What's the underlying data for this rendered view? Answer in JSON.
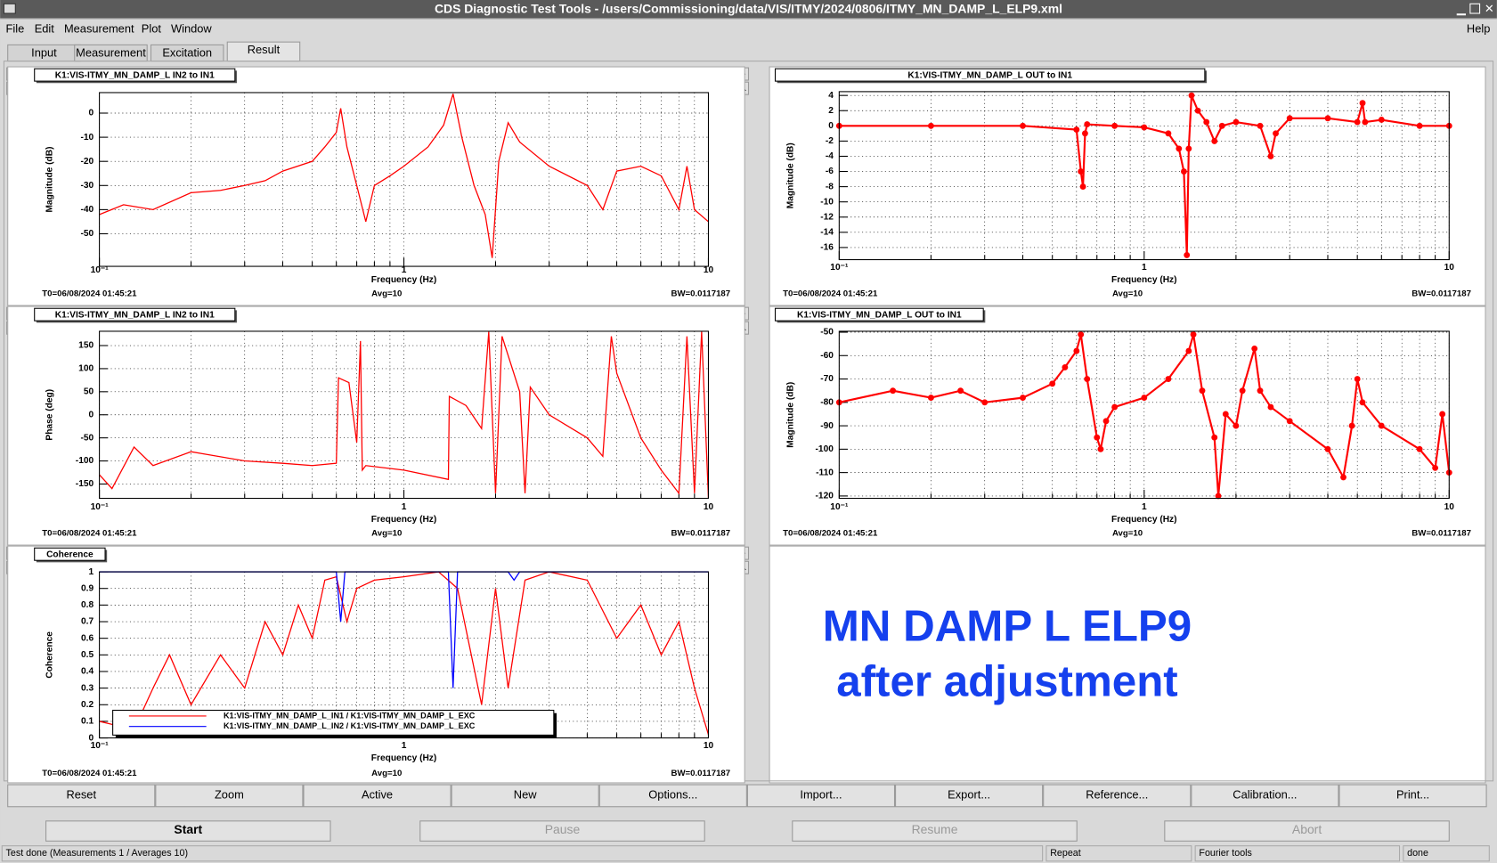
{
  "window": {
    "title": "CDS Diagnostic Test Tools - /users/Commissioning/data/VIS/ITMY/2024/0806/ITMY_MN_DAMP_L_ELP9.xml"
  },
  "menu": [
    "File",
    "Edit",
    "Measurement",
    "Plot",
    "Window"
  ],
  "help": "Help",
  "tabs": [
    "Input",
    "Measurement",
    "Excitation",
    "Result"
  ],
  "selected_tab": 3,
  "chart_data": [
    {
      "type": "line",
      "title": "K1:VIS-ITMY_MN_DAMP_L IN2 to IN1",
      "x_label": "Frequency (Hz)",
      "y_label": "Magnitude (dB)",
      "log_x": true,
      "grid": true,
      "xlim": [
        0.1,
        10
      ],
      "xticks": [
        {
          "value": 0.1,
          "label": "10⁻¹"
        },
        1,
        10
      ],
      "x_minor_ticks": [
        0.2,
        0.3,
        0.4,
        0.5,
        0.6,
        0.7,
        0.8,
        0.9,
        2,
        3,
        4,
        5,
        6,
        7,
        8,
        9
      ],
      "ylim": [
        -63.5,
        8.5
      ],
      "yticks": [
        -50,
        -40,
        -30,
        -20,
        -10,
        0
      ],
      "series": [
        {
          "color": "#ff0000",
          "markers": false,
          "x": [
            0.1,
            0.12,
            0.15,
            0.2,
            0.25,
            0.3,
            0.35,
            0.4,
            0.5,
            0.55,
            0.6,
            0.62,
            0.65,
            0.7,
            0.75,
            0.8,
            0.9,
            1,
            1.2,
            1.35,
            1.45,
            1.55,
            1.7,
            1.85,
            1.95,
            2.05,
            2.2,
            2.4,
            3,
            4,
            4.5,
            5,
            6,
            7,
            8,
            8.5,
            9,
            10
          ],
          "values": [
            -42,
            -38,
            -40,
            -33,
            -32,
            -30,
            -28,
            -24,
            -20,
            -14,
            -8,
            2,
            -14,
            -30,
            -45,
            -30,
            -26,
            -22,
            -14,
            -5,
            8,
            -10,
            -30,
            -42,
            -60,
            -20,
            -4,
            -12,
            -22,
            -30,
            -40,
            -24,
            -22,
            -26,
            -40,
            -22,
            -40,
            -45
          ]
        }
      ],
      "footer": [
        "T0=06/08/2024 01:45:21",
        "Avg=10",
        "BW=0.0117187"
      ]
    },
    {
      "type": "line",
      "title": "K1:VIS-ITMY_MN_DAMP_L OUT to IN1",
      "x_label": "Frequency (Hz)",
      "y_label": "Magnitude (dB)",
      "log_x": true,
      "grid": true,
      "xlim": [
        0.1,
        10
      ],
      "xticks": [
        {
          "value": 0.1,
          "label": "10⁻¹"
        },
        1,
        10
      ],
      "x_minor_ticks": [
        0.2,
        0.3,
        0.4,
        0.5,
        0.6,
        0.7,
        0.8,
        0.9,
        2,
        3,
        4,
        5,
        6,
        7,
        8,
        9
      ],
      "ylim": [
        -17.6,
        4.5
      ],
      "yticks": [
        -16,
        -14,
        -12,
        -10,
        -8,
        -6,
        -4,
        -2,
        0,
        2,
        4
      ],
      "series": [
        {
          "color": "#ff0000",
          "markers": true,
          "x": [
            0.1,
            0.2,
            0.4,
            0.6,
            0.62,
            0.63,
            0.64,
            0.65,
            0.8,
            1,
            1.2,
            1.3,
            1.35,
            1.38,
            1.4,
            1.43,
            1.5,
            1.6,
            1.7,
            1.8,
            2,
            2.4,
            2.6,
            2.7,
            3,
            4,
            5,
            5.2,
            5.3,
            6,
            8,
            10
          ],
          "values": [
            0,
            0,
            0,
            -0.5,
            -6,
            -8,
            -1,
            0.2,
            0,
            -0.2,
            -1,
            -3,
            -6,
            -17,
            -3,
            4,
            2,
            0.5,
            -2,
            0,
            0.5,
            0,
            -4,
            -1,
            1,
            1,
            0.5,
            3,
            0.5,
            0.8,
            0,
            0
          ]
        }
      ],
      "footer": [
        "T0=06/08/2024 01:45:21",
        "Avg=10",
        "BW=0.0117187"
      ]
    },
    {
      "type": "line",
      "title": "K1:VIS-ITMY_MN_DAMP_L IN2 to IN1",
      "x_label": "Frequency (Hz)",
      "y_label": "Phase (deg)",
      "log_x": true,
      "grid": true,
      "xlim": [
        0.1,
        10
      ],
      "xticks": [
        {
          "value": 0.1,
          "label": "10⁻¹"
        },
        1,
        10
      ],
      "x_minor_ticks": [
        0.2,
        0.3,
        0.4,
        0.5,
        0.6,
        0.7,
        0.8,
        0.9,
        2,
        3,
        4,
        5,
        6,
        7,
        8,
        9
      ],
      "ylim": [
        -181,
        181
      ],
      "yticks": [
        -150,
        -100,
        -50,
        0,
        50,
        100,
        150
      ],
      "series": [
        {
          "color": "#ff0000",
          "markers": false,
          "x": [
            0.1,
            0.11,
            0.13,
            0.15,
            0.2,
            0.3,
            0.4,
            0.5,
            0.6,
            0.61,
            0.66,
            0.7,
            0.72,
            0.73,
            0.75,
            1,
            1.4,
            1.41,
            1.6,
            1.8,
            1.9,
            2,
            2.1,
            2.4,
            2.5,
            2.6,
            3,
            4,
            4.5,
            4.8,
            5,
            6,
            7,
            8,
            8.5,
            9,
            9.5,
            10
          ],
          "values": [
            -130,
            -160,
            -70,
            -110,
            -80,
            -100,
            -105,
            -110,
            -105,
            80,
            70,
            -60,
            160,
            -120,
            -110,
            -120,
            -140,
            40,
            20,
            -30,
            180,
            -170,
            170,
            50,
            -170,
            60,
            0,
            -50,
            -90,
            170,
            90,
            -50,
            -120,
            -170,
            170,
            -170,
            180,
            -180
          ]
        }
      ],
      "footer": [
        "T0=06/08/2024 01:45:21",
        "Avg=10",
        "BW=0.0117187"
      ]
    },
    {
      "type": "line",
      "title": "K1:VIS-ITMY_MN_DAMP_L OUT to IN1",
      "x_label": "Frequency (Hz)",
      "y_label": "Magnitude (dB)",
      "log_x": true,
      "grid": true,
      "xlim": [
        0.1,
        10
      ],
      "xticks": [
        {
          "value": 0.1,
          "label": "10⁻¹"
        },
        1,
        10
      ],
      "x_minor_ticks": [
        0.2,
        0.3,
        0.4,
        0.5,
        0.6,
        0.7,
        0.8,
        0.9,
        2,
        3,
        4,
        5,
        6,
        7,
        8,
        9
      ],
      "ylim": [
        -121,
        -49.6
      ],
      "yticks": [
        -120,
        -110,
        -100,
        -90,
        -80,
        -70,
        -60,
        -50
      ],
      "series": [
        {
          "color": "#ff0000",
          "markers": true,
          "x": [
            0.1,
            0.15,
            0.2,
            0.25,
            0.3,
            0.4,
            0.5,
            0.55,
            0.6,
            0.62,
            0.65,
            0.7,
            0.72,
            0.75,
            0.8,
            1,
            1.2,
            1.4,
            1.45,
            1.55,
            1.7,
            1.75,
            1.85,
            2,
            2.1,
            2.3,
            2.4,
            2.6,
            3,
            4,
            4.5,
            4.8,
            5,
            5.2,
            6,
            8,
            9,
            9.5,
            10
          ],
          "values": [
            -80,
            -75,
            -78,
            -75,
            -80,
            -78,
            -72,
            -65,
            -58,
            -51,
            -70,
            -95,
            -100,
            -88,
            -82,
            -78,
            -70,
            -58,
            -51,
            -75,
            -95,
            -120,
            -85,
            -90,
            -75,
            -57,
            -75,
            -82,
            -88,
            -100,
            -112,
            -90,
            -70,
            -80,
            -90,
            -100,
            -108,
            -85,
            -110
          ]
        }
      ],
      "footer": [
        "T0=06/08/2024 01:45:21",
        "Avg=10",
        "BW=0.0117187"
      ]
    },
    {
      "type": "line",
      "title": "Coherence",
      "x_label": "Frequency (Hz)",
      "y_label": "Coherence",
      "log_x": true,
      "grid": true,
      "xlim": [
        0.1,
        10
      ],
      "xticks": [
        {
          "value": 0.1,
          "label": "10⁻¹"
        },
        1,
        10
      ],
      "x_minor_ticks": [
        0.2,
        0.3,
        0.4,
        0.5,
        0.6,
        0.7,
        0.8,
        0.9,
        2,
        3,
        4,
        5,
        6,
        7,
        8,
        9
      ],
      "ylim": [
        0,
        1
      ],
      "yticks": [
        0,
        0.1,
        0.2,
        0.3,
        0.4,
        0.5,
        0.6,
        0.7,
        0.8,
        0.9,
        1
      ],
      "series": [
        {
          "name": "K1:VIS-ITMY_MN_DAMP_L_IN1 / K1:VIS-ITMY_MN_DAMP_L_EXC",
          "color": "#ff0000",
          "markers": false,
          "x": [
            0.1,
            0.13,
            0.15,
            0.17,
            0.2,
            0.25,
            0.3,
            0.35,
            0.4,
            0.45,
            0.5,
            0.55,
            0.6,
            0.65,
            0.7,
            0.8,
            1,
            1.3,
            1.5,
            1.8,
            2,
            2.2,
            2.5,
            3,
            4,
            5,
            6,
            7,
            8,
            9,
            10
          ],
          "values": [
            0.1,
            0.05,
            0.3,
            0.5,
            0.2,
            0.5,
            0.3,
            0.7,
            0.5,
            0.8,
            0.6,
            0.95,
            0.97,
            0.7,
            0.9,
            0.95,
            0.97,
            1,
            0.9,
            0.2,
            0.9,
            0.3,
            0.95,
            1,
            0.95,
            0.6,
            0.8,
            0.5,
            0.7,
            0.3,
            0.02
          ]
        },
        {
          "name": "K1:VIS-ITMY_MN_DAMP_L_IN2 / K1:VIS-ITMY_MN_DAMP_L_EXC",
          "color": "#0000ff",
          "markers": false,
          "x": [
            0.1,
            0.6,
            0.62,
            0.64,
            1.4,
            1.45,
            1.5,
            2.2,
            2.3,
            2.4,
            10
          ],
          "values": [
            1,
            1,
            0.7,
            1,
            1,
            0.3,
            1,
            1,
            0.95,
            1,
            1
          ]
        }
      ],
      "footer": [
        "T0=06/08/2024 01:45:21",
        "Avg=10",
        "BW=0.0117187"
      ]
    }
  ],
  "annotation": [
    "MN DAMP L ELP9",
    "after adjustment"
  ],
  "buttons": [
    "Reset",
    "Zoom",
    "Active",
    "New",
    "Options...",
    "Import...",
    "Export...",
    "Reference...",
    "Calibration...",
    "Print..."
  ],
  "controls": [
    "Start",
    "Pause",
    "Resume",
    "Abort"
  ],
  "status": [
    "Test done (Measurements 1 / Averages 10)",
    "Repeat",
    "Fourier tools",
    "done"
  ]
}
